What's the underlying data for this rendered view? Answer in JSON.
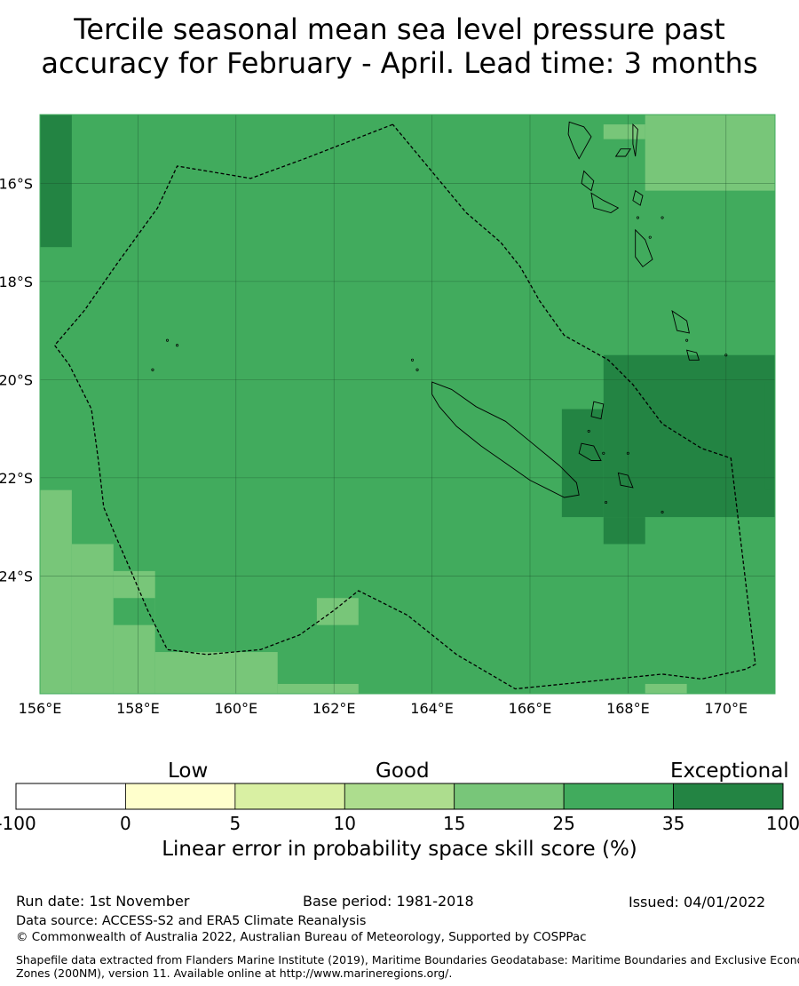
{
  "title": {
    "line1": "Tercile seasonal mean sea level pressure past",
    "line2": "accuracy for February - April. Lead time: 3 months"
  },
  "map": {
    "lon_range": [
      156,
      171
    ],
    "lat_range": [
      -26.4,
      -14.6
    ],
    "lon_ticks": [
      "156°E",
      "158°E",
      "160°E",
      "162°E",
      "164°E",
      "166°E",
      "168°E",
      "170°E"
    ],
    "lat_ticks": [
      "16°S",
      "18°S",
      "20°S",
      "22°S",
      "24°S"
    ],
    "colors": {
      "c15_25": "#78c679",
      "c25_35": "#41ab5d",
      "c35_100": "#238443"
    },
    "cells": [
      {
        "lon": [
          156,
          156.65
        ],
        "lat": [
          -17.3,
          -14.6
        ],
        "cls": "c35_100"
      },
      {
        "lon": [
          168.35,
          171
        ],
        "lat": [
          -16.15,
          -14.6
        ],
        "cls": "c15_25"
      },
      {
        "lon": [
          167.5,
          168.35
        ],
        "lat": [
          -15.1,
          -14.8
        ],
        "cls": "c15_25"
      },
      {
        "lon": [
          167.5,
          171
        ],
        "lat": [
          -22.8,
          -19.5
        ],
        "cls": "c35_100"
      },
      {
        "lon": [
          166.65,
          167.5
        ],
        "lat": [
          -22.8,
          -20.6
        ],
        "cls": "c35_100"
      },
      {
        "lon": [
          167.5,
          168.35
        ],
        "lat": [
          -23.35,
          -22.8
        ],
        "cls": "c35_100"
      },
      {
        "lon": [
          170.8,
          171
        ],
        "lat": [
          -22.25,
          -20.05
        ],
        "cls": "c35_100"
      },
      {
        "lon": [
          156,
          156.65
        ],
        "lat": [
          -26.4,
          -22.25
        ],
        "cls": "c15_25"
      },
      {
        "lon": [
          156.65,
          157.5
        ],
        "lat": [
          -26.4,
          -23.35
        ],
        "cls": "c15_25"
      },
      {
        "lon": [
          157.5,
          158.35
        ],
        "lat": [
          -26.4,
          -23.9
        ],
        "cls": "c15_25"
      },
      {
        "lon": [
          158.35,
          160.85
        ],
        "lat": [
          -26.4,
          -25.55
        ],
        "cls": "c15_25"
      },
      {
        "lon": [
          160.85,
          162.5
        ],
        "lat": [
          -26.4,
          -26.2
        ],
        "cls": "c15_25"
      },
      {
        "lon": [
          157.5,
          158.35
        ],
        "lat": [
          -25.0,
          -24.45
        ],
        "cls": "c25_35"
      },
      {
        "lon": [
          161.65,
          162.5
        ],
        "lat": [
          -25.0,
          -24.45
        ],
        "cls": "c15_25"
      },
      {
        "lon": [
          168.35,
          169.2
        ],
        "lat": [
          -26.4,
          -26.2
        ],
        "cls": "c15_25"
      }
    ],
    "eez": [
      [
        163.2,
        -14.8
      ],
      [
        161.4,
        -15.5
      ],
      [
        160.3,
        -15.9
      ],
      [
        158.8,
        -15.65
      ],
      [
        158.4,
        -16.5
      ],
      [
        157.6,
        -17.6
      ],
      [
        156.9,
        -18.6
      ],
      [
        156.3,
        -19.3
      ],
      [
        156.6,
        -19.7
      ],
      [
        157.05,
        -20.6
      ],
      [
        157.2,
        -21.7
      ],
      [
        157.3,
        -22.6
      ],
      [
        157.55,
        -23.2
      ],
      [
        157.9,
        -24.0
      ],
      [
        158.2,
        -24.7
      ],
      [
        158.6,
        -25.5
      ],
      [
        159.4,
        -25.6
      ],
      [
        160.5,
        -25.5
      ],
      [
        161.3,
        -25.2
      ],
      [
        162.0,
        -24.7
      ],
      [
        162.5,
        -24.3
      ],
      [
        163.5,
        -24.8
      ],
      [
        164.5,
        -25.6
      ],
      [
        165.7,
        -26.3
      ],
      [
        168.7,
        -26.0
      ],
      [
        169.5,
        -26.1
      ],
      [
        170.4,
        -25.9
      ],
      [
        170.6,
        -25.8
      ],
      [
        170.1,
        -21.6
      ],
      [
        169.5,
        -21.4
      ],
      [
        168.7,
        -20.9
      ],
      [
        168.1,
        -20.1
      ],
      [
        167.6,
        -19.6
      ],
      [
        166.7,
        -19.1
      ],
      [
        166.2,
        -18.4
      ],
      [
        165.8,
        -17.7
      ],
      [
        165.4,
        -17.2
      ],
      [
        164.7,
        -16.6
      ],
      [
        164.2,
        -16.0
      ],
      [
        163.2,
        -14.8
      ]
    ],
    "islands": [
      [
        [
          164.0,
          -20.05
        ],
        [
          164.4,
          -20.2
        ],
        [
          164.9,
          -20.55
        ],
        [
          165.5,
          -20.85
        ],
        [
          166.05,
          -21.3
        ],
        [
          166.6,
          -21.75
        ],
        [
          166.95,
          -22.1
        ],
        [
          167.0,
          -22.35
        ],
        [
          166.7,
          -22.4
        ],
        [
          166.4,
          -22.25
        ],
        [
          166.0,
          -22.05
        ],
        [
          165.5,
          -21.7
        ],
        [
          165.0,
          -21.35
        ],
        [
          164.5,
          -20.95
        ],
        [
          164.15,
          -20.55
        ],
        [
          164.0,
          -20.3
        ]
      ],
      [
        [
          166.8,
          -14.75
        ],
        [
          167.1,
          -14.85
        ],
        [
          167.25,
          -15.05
        ],
        [
          167.0,
          -15.5
        ],
        [
          166.9,
          -15.3
        ],
        [
          166.78,
          -15.0
        ]
      ],
      [
        [
          167.1,
          -15.75
        ],
        [
          167.3,
          -15.95
        ],
        [
          167.25,
          -16.15
        ],
        [
          167.05,
          -16.0
        ]
      ],
      [
        [
          167.25,
          -16.2
        ],
        [
          167.5,
          -16.35
        ],
        [
          167.8,
          -16.5
        ],
        [
          167.65,
          -16.6
        ],
        [
          167.3,
          -16.5
        ]
      ],
      [
        [
          168.15,
          -16.15
        ],
        [
          168.3,
          -16.25
        ],
        [
          168.25,
          -16.45
        ],
        [
          168.1,
          -16.35
        ]
      ],
      [
        [
          168.1,
          -14.8
        ],
        [
          168.2,
          -14.9
        ],
        [
          168.15,
          -15.45
        ],
        [
          168.1,
          -15.2
        ]
      ],
      [
        [
          167.85,
          -15.3
        ],
        [
          168.05,
          -15.3
        ],
        [
          167.95,
          -15.45
        ],
        [
          167.75,
          -15.45
        ]
      ],
      [
        [
          168.15,
          -16.95
        ],
        [
          168.35,
          -17.15
        ],
        [
          168.5,
          -17.55
        ],
        [
          168.3,
          -17.7
        ],
        [
          168.15,
          -17.5
        ]
      ],
      [
        [
          168.9,
          -18.6
        ],
        [
          169.2,
          -18.8
        ],
        [
          169.25,
          -19.05
        ],
        [
          169.0,
          -19.0
        ]
      ],
      [
        [
          169.2,
          -19.4
        ],
        [
          169.4,
          -19.45
        ],
        [
          169.45,
          -19.6
        ],
        [
          169.25,
          -19.6
        ]
      ],
      [
        [
          167.05,
          -21.3
        ],
        [
          167.3,
          -21.35
        ],
        [
          167.45,
          -21.65
        ],
        [
          167.25,
          -21.65
        ],
        [
          167.0,
          -21.5
        ]
      ],
      [
        [
          167.8,
          -21.9
        ],
        [
          168.0,
          -21.95
        ],
        [
          168.1,
          -22.2
        ],
        [
          167.85,
          -22.15
        ]
      ],
      [
        [
          167.3,
          -20.45
        ],
        [
          167.5,
          -20.5
        ],
        [
          167.45,
          -20.8
        ],
        [
          167.25,
          -20.75
        ]
      ]
    ],
    "islets": [
      [
        158.6,
        -19.2
      ],
      [
        158.8,
        -19.3
      ],
      [
        158.3,
        -19.8
      ],
      [
        163.6,
        -19.6
      ],
      [
        163.7,
        -19.8
      ],
      [
        167.5,
        -21.5
      ],
      [
        168.0,
        -21.5
      ],
      [
        168.7,
        -22.7
      ],
      [
        170.0,
        -19.5
      ],
      [
        168.45,
        -17.1
      ],
      [
        168.7,
        -16.7
      ],
      [
        168.2,
        -16.7
      ],
      [
        169.2,
        -19.2
      ],
      [
        167.55,
        -22.5
      ],
      [
        167.2,
        -21.05
      ]
    ],
    "lon_ticks_values": [
      156,
      158,
      160,
      162,
      164,
      166,
      168,
      170
    ],
    "lat_ticks_values": [
      -16,
      -18,
      -20,
      -22,
      -24
    ]
  },
  "colorbar": {
    "categories": [
      "Low",
      "Good",
      "Exceptional"
    ],
    "ticks": [
      "-100",
      "0",
      "5",
      "10",
      "15",
      "25",
      "35",
      "100"
    ],
    "colors": [
      "#ffffff",
      "#ffffcc",
      "#d9f0a3",
      "#addd8e",
      "#78c679",
      "#41ab5d",
      "#238443"
    ],
    "label": "Linear error in probability space skill score (%)"
  },
  "footer": {
    "run_date": "Run date: 1st November",
    "base_period": "Base period: 1981-2018",
    "issued": "Issued: 04/01/2022",
    "data_source": "Data source: ACCESS-S2 and ERA5 Climate Reanalysis",
    "copyright": "© Commonwealth of Australia 2022, Australian Bureau of Meteorology, Supported by COSPPac",
    "shapefile_line1": "Shapefile data extracted from Flanders Marine Institute (2019), Maritime Boundaries Geodatabase: Maritime Boundaries and Exclusive Economic",
    "shapefile_line2": "Zones (200NM), version 11. Available online at http://www.marineregions.org/."
  }
}
